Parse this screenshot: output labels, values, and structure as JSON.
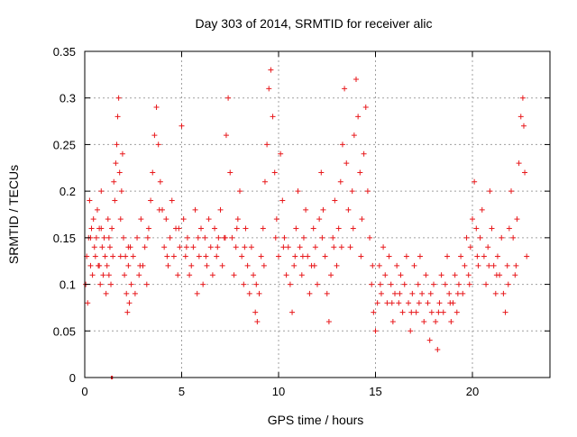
{
  "chart_data": {
    "type": "scatter",
    "title": "Day 303 of 2014, SRMTID for receiver alic",
    "xlabel": "GPS time / hours",
    "ylabel": "SRMTID / TECUs",
    "xlim": [
      0,
      24
    ],
    "ylim": [
      0,
      0.35
    ],
    "xticks": [
      "0",
      "5",
      "10",
      "15",
      "20"
    ],
    "yticks": [
      "0",
      "0.05",
      "0.1",
      "0.15",
      "0.2",
      "0.25",
      "0.3",
      "0.35"
    ],
    "grid": true,
    "marker": "plus",
    "color": "#e8191c",
    "baseline_segment": {
      "x": [
        1.35,
        1.45
      ],
      "y": 0
    },
    "points": [
      [
        0.05,
        0.1
      ],
      [
        0.1,
        0.13
      ],
      [
        0.15,
        0.08
      ],
      [
        0.2,
        0.15
      ],
      [
        0.25,
        0.19
      ],
      [
        0.3,
        0.12
      ],
      [
        0.35,
        0.16
      ],
      [
        0.4,
        0.11
      ],
      [
        0.45,
        0.17
      ],
      [
        0.5,
        0.14
      ],
      [
        0.55,
        0.13
      ],
      [
        0.6,
        0.15
      ],
      [
        0.65,
        0.18
      ],
      [
        0.7,
        0.12
      ],
      [
        0.75,
        0.16
      ],
      [
        0.8,
        0.1
      ],
      [
        0.85,
        0.2
      ],
      [
        0.9,
        0.14
      ],
      [
        0.95,
        0.11
      ],
      [
        1.0,
        0.15
      ],
      [
        1.05,
        0.13
      ],
      [
        1.1,
        0.09
      ],
      [
        1.15,
        0.12
      ],
      [
        1.2,
        0.17
      ],
      [
        1.25,
        0.11
      ],
      [
        1.3,
        0.14
      ],
      [
        1.35,
        0.1
      ],
      [
        1.4,
        0.16
      ],
      [
        1.45,
        0.13
      ],
      [
        1.5,
        0.21
      ],
      [
        1.55,
        0.19
      ],
      [
        1.6,
        0.23
      ],
      [
        1.65,
        0.25
      ],
      [
        1.7,
        0.28
      ],
      [
        1.75,
        0.3
      ],
      [
        1.8,
        0.22
      ],
      [
        1.85,
        0.17
      ],
      [
        1.9,
        0.2
      ],
      [
        1.95,
        0.24
      ],
      [
        2.0,
        0.15
      ],
      [
        2.05,
        0.11
      ],
      [
        2.1,
        0.13
      ],
      [
        2.15,
        0.09
      ],
      [
        2.2,
        0.07
      ],
      [
        2.25,
        0.12
      ],
      [
        2.3,
        0.08
      ],
      [
        2.35,
        0.14
      ],
      [
        2.4,
        0.1
      ],
      [
        2.5,
        0.13
      ],
      [
        2.6,
        0.09
      ],
      [
        2.7,
        0.15
      ],
      [
        2.8,
        0.11
      ],
      [
        2.9,
        0.17
      ],
      [
        3.0,
        0.12
      ],
      [
        3.1,
        0.14
      ],
      [
        3.2,
        0.1
      ],
      [
        3.3,
        0.16
      ],
      [
        3.4,
        0.19
      ],
      [
        3.5,
        0.22
      ],
      [
        3.6,
        0.26
      ],
      [
        3.7,
        0.29
      ],
      [
        3.8,
        0.25
      ],
      [
        3.9,
        0.21
      ],
      [
        4.0,
        0.18
      ],
      [
        4.1,
        0.14
      ],
      [
        4.2,
        0.17
      ],
      [
        4.3,
        0.12
      ],
      [
        4.4,
        0.15
      ],
      [
        4.5,
        0.19
      ],
      [
        4.6,
        0.13
      ],
      [
        4.7,
        0.16
      ],
      [
        4.8,
        0.11
      ],
      [
        4.9,
        0.14
      ],
      [
        5.0,
        0.27
      ],
      [
        5.1,
        0.17
      ],
      [
        5.2,
        0.13
      ],
      [
        5.3,
        0.15
      ],
      [
        5.4,
        0.11
      ],
      [
        5.5,
        0.12
      ],
      [
        5.6,
        0.14
      ],
      [
        5.7,
        0.18
      ],
      [
        5.8,
        0.09
      ],
      [
        5.9,
        0.13
      ],
      [
        6.0,
        0.16
      ],
      [
        6.1,
        0.1
      ],
      [
        6.2,
        0.15
      ],
      [
        6.3,
        0.12
      ],
      [
        6.4,
        0.17
      ],
      [
        6.5,
        0.14
      ],
      [
        6.6,
        0.11
      ],
      [
        6.7,
        0.16
      ],
      [
        6.8,
        0.13
      ],
      [
        6.9,
        0.15
      ],
      [
        7.0,
        0.18
      ],
      [
        7.1,
        0.12
      ],
      [
        7.2,
        0.15
      ],
      [
        7.3,
        0.26
      ],
      [
        7.4,
        0.3
      ],
      [
        7.5,
        0.22
      ],
      [
        7.6,
        0.15
      ],
      [
        7.7,
        0.11
      ],
      [
        7.8,
        0.14
      ],
      [
        7.9,
        0.17
      ],
      [
        8.0,
        0.2
      ],
      [
        8.1,
        0.13
      ],
      [
        8.2,
        0.1
      ],
      [
        8.3,
        0.16
      ],
      [
        8.4,
        0.12
      ],
      [
        8.5,
        0.09
      ],
      [
        8.6,
        0.14
      ],
      [
        8.7,
        0.11
      ],
      [
        8.8,
        0.07
      ],
      [
        8.9,
        0.06
      ],
      [
        9.0,
        0.09
      ],
      [
        9.1,
        0.13
      ],
      [
        9.2,
        0.16
      ],
      [
        9.3,
        0.21
      ],
      [
        9.4,
        0.25
      ],
      [
        9.5,
        0.31
      ],
      [
        9.6,
        0.33
      ],
      [
        9.7,
        0.28
      ],
      [
        9.8,
        0.22
      ],
      [
        9.9,
        0.17
      ],
      [
        10.0,
        0.13
      ],
      [
        10.1,
        0.24
      ],
      [
        10.2,
        0.19
      ],
      [
        10.3,
        0.15
      ],
      [
        10.4,
        0.11
      ],
      [
        10.5,
        0.14
      ],
      [
        10.6,
        0.1
      ],
      [
        10.7,
        0.07
      ],
      [
        10.8,
        0.12
      ],
      [
        10.9,
        0.16
      ],
      [
        11.0,
        0.2
      ],
      [
        11.1,
        0.14
      ],
      [
        11.2,
        0.11
      ],
      [
        11.3,
        0.15
      ],
      [
        11.4,
        0.18
      ],
      [
        11.5,
        0.13
      ],
      [
        11.6,
        0.09
      ],
      [
        11.7,
        0.12
      ],
      [
        11.8,
        0.16
      ],
      [
        11.9,
        0.14
      ],
      [
        12.0,
        0.1
      ],
      [
        12.1,
        0.17
      ],
      [
        12.2,
        0.22
      ],
      [
        12.3,
        0.18
      ],
      [
        12.4,
        0.13
      ],
      [
        12.5,
        0.09
      ],
      [
        12.6,
        0.06
      ],
      [
        12.7,
        0.11
      ],
      [
        12.8,
        0.15
      ],
      [
        12.9,
        0.19
      ],
      [
        13.0,
        0.12
      ],
      [
        13.1,
        0.16
      ],
      [
        13.2,
        0.21
      ],
      [
        13.3,
        0.25
      ],
      [
        13.4,
        0.31
      ],
      [
        13.5,
        0.23
      ],
      [
        13.6,
        0.18
      ],
      [
        13.7,
        0.14
      ],
      [
        13.8,
        0.2
      ],
      [
        13.9,
        0.26
      ],
      [
        14.0,
        0.32
      ],
      [
        14.1,
        0.28
      ],
      [
        14.2,
        0.22
      ],
      [
        14.3,
        0.17
      ],
      [
        14.4,
        0.24
      ],
      [
        14.5,
        0.29
      ],
      [
        14.6,
        0.2
      ],
      [
        14.7,
        0.15
      ],
      [
        14.8,
        0.1
      ],
      [
        14.9,
        0.07
      ],
      [
        15.0,
        0.05
      ],
      [
        15.1,
        0.08
      ],
      [
        15.2,
        0.12
      ],
      [
        15.3,
        0.09
      ],
      [
        15.4,
        0.14
      ],
      [
        15.5,
        0.11
      ],
      [
        15.6,
        0.08
      ],
      [
        15.7,
        0.13
      ],
      [
        15.8,
        0.1
      ],
      [
        15.9,
        0.06
      ],
      [
        16.0,
        0.09
      ],
      [
        16.1,
        0.12
      ],
      [
        16.2,
        0.08
      ],
      [
        16.3,
        0.11
      ],
      [
        16.4,
        0.07
      ],
      [
        16.5,
        0.1
      ],
      [
        16.6,
        0.13
      ],
      [
        16.7,
        0.08
      ],
      [
        16.8,
        0.05
      ],
      [
        16.9,
        0.09
      ],
      [
        17.0,
        0.12
      ],
      [
        17.1,
        0.07
      ],
      [
        17.2,
        0.1
      ],
      [
        17.3,
        0.13
      ],
      [
        17.4,
        0.09
      ],
      [
        17.5,
        0.06
      ],
      [
        17.6,
        0.11
      ],
      [
        17.7,
        0.08
      ],
      [
        17.8,
        0.04
      ],
      [
        17.9,
        0.07
      ],
      [
        18.0,
        0.1
      ],
      [
        18.1,
        0.06
      ],
      [
        18.2,
        0.03
      ],
      [
        18.3,
        0.08
      ],
      [
        18.4,
        0.11
      ],
      [
        18.5,
        0.07
      ],
      [
        18.6,
        0.1
      ],
      [
        18.7,
        0.13
      ],
      [
        18.8,
        0.09
      ],
      [
        18.9,
        0.06
      ],
      [
        19.0,
        0.08
      ],
      [
        19.1,
        0.11
      ],
      [
        19.2,
        0.07
      ],
      [
        19.3,
        0.1
      ],
      [
        19.4,
        0.13
      ],
      [
        19.5,
        0.09
      ],
      [
        19.6,
        0.12
      ],
      [
        19.7,
        0.15
      ],
      [
        19.8,
        0.11
      ],
      [
        19.9,
        0.14
      ],
      [
        20.0,
        0.17
      ],
      [
        20.1,
        0.21
      ],
      [
        20.2,
        0.16
      ],
      [
        20.3,
        0.12
      ],
      [
        20.4,
        0.15
      ],
      [
        20.5,
        0.18
      ],
      [
        20.6,
        0.13
      ],
      [
        20.7,
        0.1
      ],
      [
        20.8,
        0.14
      ],
      [
        20.9,
        0.2
      ],
      [
        21.0,
        0.16
      ],
      [
        21.1,
        0.12
      ],
      [
        21.2,
        0.09
      ],
      [
        21.3,
        0.13
      ],
      [
        21.4,
        0.11
      ],
      [
        21.5,
        0.15
      ],
      [
        21.6,
        0.09
      ],
      [
        21.7,
        0.07
      ],
      [
        21.8,
        0.12
      ],
      [
        21.9,
        0.16
      ],
      [
        22.0,
        0.2
      ],
      [
        22.1,
        0.15
      ],
      [
        22.2,
        0.11
      ],
      [
        22.3,
        0.17
      ],
      [
        22.4,
        0.23
      ],
      [
        22.5,
        0.28
      ],
      [
        22.6,
        0.3
      ],
      [
        22.7,
        0.22
      ],
      [
        22.8,
        0.13
      ],
      [
        0.3,
        0.15
      ],
      [
        0.75,
        0.12
      ],
      [
        1.25,
        0.15
      ],
      [
        2.25,
        0.14
      ],
      [
        3.25,
        0.15
      ],
      [
        4.25,
        0.13
      ],
      [
        5.25,
        0.14
      ],
      [
        6.25,
        0.13
      ],
      [
        7.25,
        0.15
      ],
      [
        8.25,
        0.14
      ],
      [
        9.25,
        0.12
      ],
      [
        10.25,
        0.14
      ],
      [
        11.25,
        0.13
      ],
      [
        12.25,
        0.15
      ],
      [
        13.25,
        0.14
      ],
      [
        14.25,
        0.13
      ],
      [
        15.25,
        0.1
      ],
      [
        16.25,
        0.09
      ],
      [
        17.25,
        0.08
      ],
      [
        18.25,
        0.07
      ],
      [
        19.25,
        0.09
      ],
      [
        20.25,
        0.13
      ],
      [
        21.25,
        0.11
      ],
      [
        22.25,
        0.12
      ],
      [
        0.85,
        0.16
      ],
      [
        1.85,
        0.13
      ],
      [
        2.85,
        0.12
      ],
      [
        3.85,
        0.18
      ],
      [
        4.85,
        0.16
      ],
      [
        5.85,
        0.15
      ],
      [
        6.85,
        0.14
      ],
      [
        7.85,
        0.16
      ],
      [
        8.85,
        0.1
      ],
      [
        9.85,
        0.15
      ],
      [
        10.85,
        0.13
      ],
      [
        11.85,
        0.12
      ],
      [
        12.85,
        0.14
      ],
      [
        13.85,
        0.16
      ],
      [
        14.85,
        0.12
      ],
      [
        15.85,
        0.08
      ],
      [
        16.85,
        0.07
      ],
      [
        17.85,
        0.09
      ],
      [
        18.85,
        0.08
      ],
      [
        19.85,
        0.1
      ],
      [
        20.85,
        0.12
      ],
      [
        21.85,
        0.1
      ],
      [
        22.65,
        0.27
      ]
    ]
  }
}
